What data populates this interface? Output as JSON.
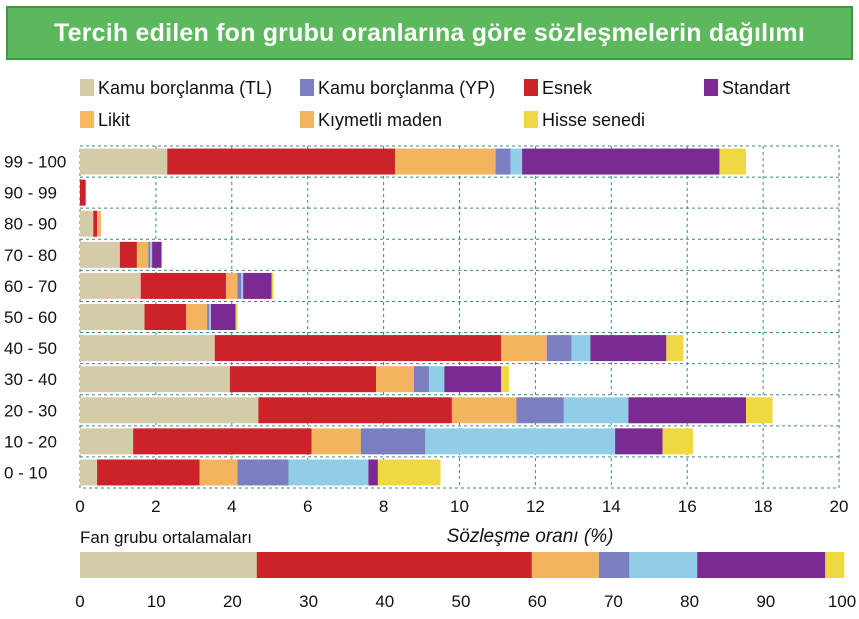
{
  "title": "Tercih edilen fon grubu oranlarına göre sözleşmelerin dağılımı",
  "legend": [
    {
      "label": "Kamu borçlanma (TL)",
      "color": "#d4cca8"
    },
    {
      "label": "Kamu borçlanma (YP)",
      "color": "#7b7fc0"
    },
    {
      "label": "Esnek",
      "color": "#cc2229"
    },
    {
      "label": "Standart",
      "color": "#7b2a92"
    },
    {
      "label": "Likit",
      "color": "#f5b85a"
    },
    {
      "label": "Kıymetli maden",
      "color": "#f2b45e"
    },
    {
      "label": "Hisse senedi",
      "color": "#f0d843"
    }
  ],
  "chart_data": [
    {
      "type": "bar",
      "orientation": "horizontal",
      "stacked": true,
      "categories": [
        "99 - 100",
        "90 - 99",
        "80 - 90",
        "70 - 80",
        "60 - 70",
        "50 - 60",
        "40 - 50",
        "30 - 40",
        "20 - 30",
        "10 - 20",
        "0 - 10"
      ],
      "segment_order": [
        "Kamu borçlanma (TL)",
        "Esnek",
        "Kıymetli maden",
        "Kamu borçlanma (YP)",
        "Likit",
        "Standart",
        "Hisse senedi"
      ],
      "series": [
        {
          "name": "Kamu borçlanma (TL)",
          "color": "#d4cca8",
          "values": [
            2.3,
            0.0,
            0.35,
            1.05,
            1.6,
            1.7,
            3.55,
            3.95,
            4.7,
            1.4,
            0.45
          ]
        },
        {
          "name": "Esnek",
          "color": "#cc2229",
          "values": [
            6.0,
            0.15,
            0.1,
            0.45,
            2.25,
            1.1,
            7.55,
            3.85,
            5.1,
            4.7,
            2.7
          ]
        },
        {
          "name": "Kıymetli maden",
          "color": "#f2b45e",
          "values": [
            2.65,
            0.0,
            0.1,
            0.3,
            0.3,
            0.55,
            1.2,
            1.0,
            1.7,
            1.3,
            1.0
          ]
        },
        {
          "name": "Kamu borçlanma (YP)",
          "color": "#7b7fc0",
          "values": [
            0.4,
            0.0,
            0.0,
            0.05,
            0.1,
            0.05,
            0.65,
            0.4,
            1.25,
            1.7,
            1.35
          ]
        },
        {
          "name": "Likit",
          "color": "#92cde8",
          "values": [
            0.3,
            0.0,
            0.0,
            0.05,
            0.05,
            0.05,
            0.5,
            0.4,
            1.7,
            5.0,
            2.1
          ]
        },
        {
          "name": "Standart",
          "color": "#7b2a92",
          "values": [
            5.2,
            0.0,
            0.0,
            0.25,
            0.75,
            0.65,
            2.0,
            1.5,
            3.1,
            1.25,
            0.25
          ]
        },
        {
          "name": "Hisse senedi",
          "color": "#f0d843",
          "values": [
            0.7,
            0.0,
            0.0,
            0.0,
            0.05,
            0.05,
            0.45,
            0.2,
            0.7,
            0.8,
            1.65
          ]
        }
      ],
      "xlim": [
        0,
        20
      ],
      "xticks": [
        "0",
        "2",
        "4",
        "6",
        "8",
        "10",
        "12",
        "14",
        "16",
        "18",
        "20"
      ],
      "xlabel": "Sözleşme oranı (%)",
      "grid": true
    },
    {
      "type": "bar",
      "orientation": "horizontal",
      "stacked": true,
      "title": "Fan grubu ortalamaları",
      "segment_order": [
        "Kamu borçlanma (TL)",
        "Esnek",
        "Kıymetli maden",
        "Kamu borçlanma (YP)",
        "Likit",
        "Standart",
        "Hisse senedi"
      ],
      "values": [
        23.2,
        36.1,
        8.8,
        4.0,
        8.9,
        16.8,
        2.5
      ],
      "colors": [
        "#d4cca8",
        "#cc2229",
        "#f2b45e",
        "#7b7fc0",
        "#92cde8",
        "#7b2a92",
        "#f0d843"
      ],
      "xlim": [
        0,
        100
      ],
      "xticks": [
        "0",
        "10",
        "20",
        "30",
        "40",
        "50",
        "60",
        "70",
        "80",
        "90",
        "100"
      ]
    }
  ]
}
